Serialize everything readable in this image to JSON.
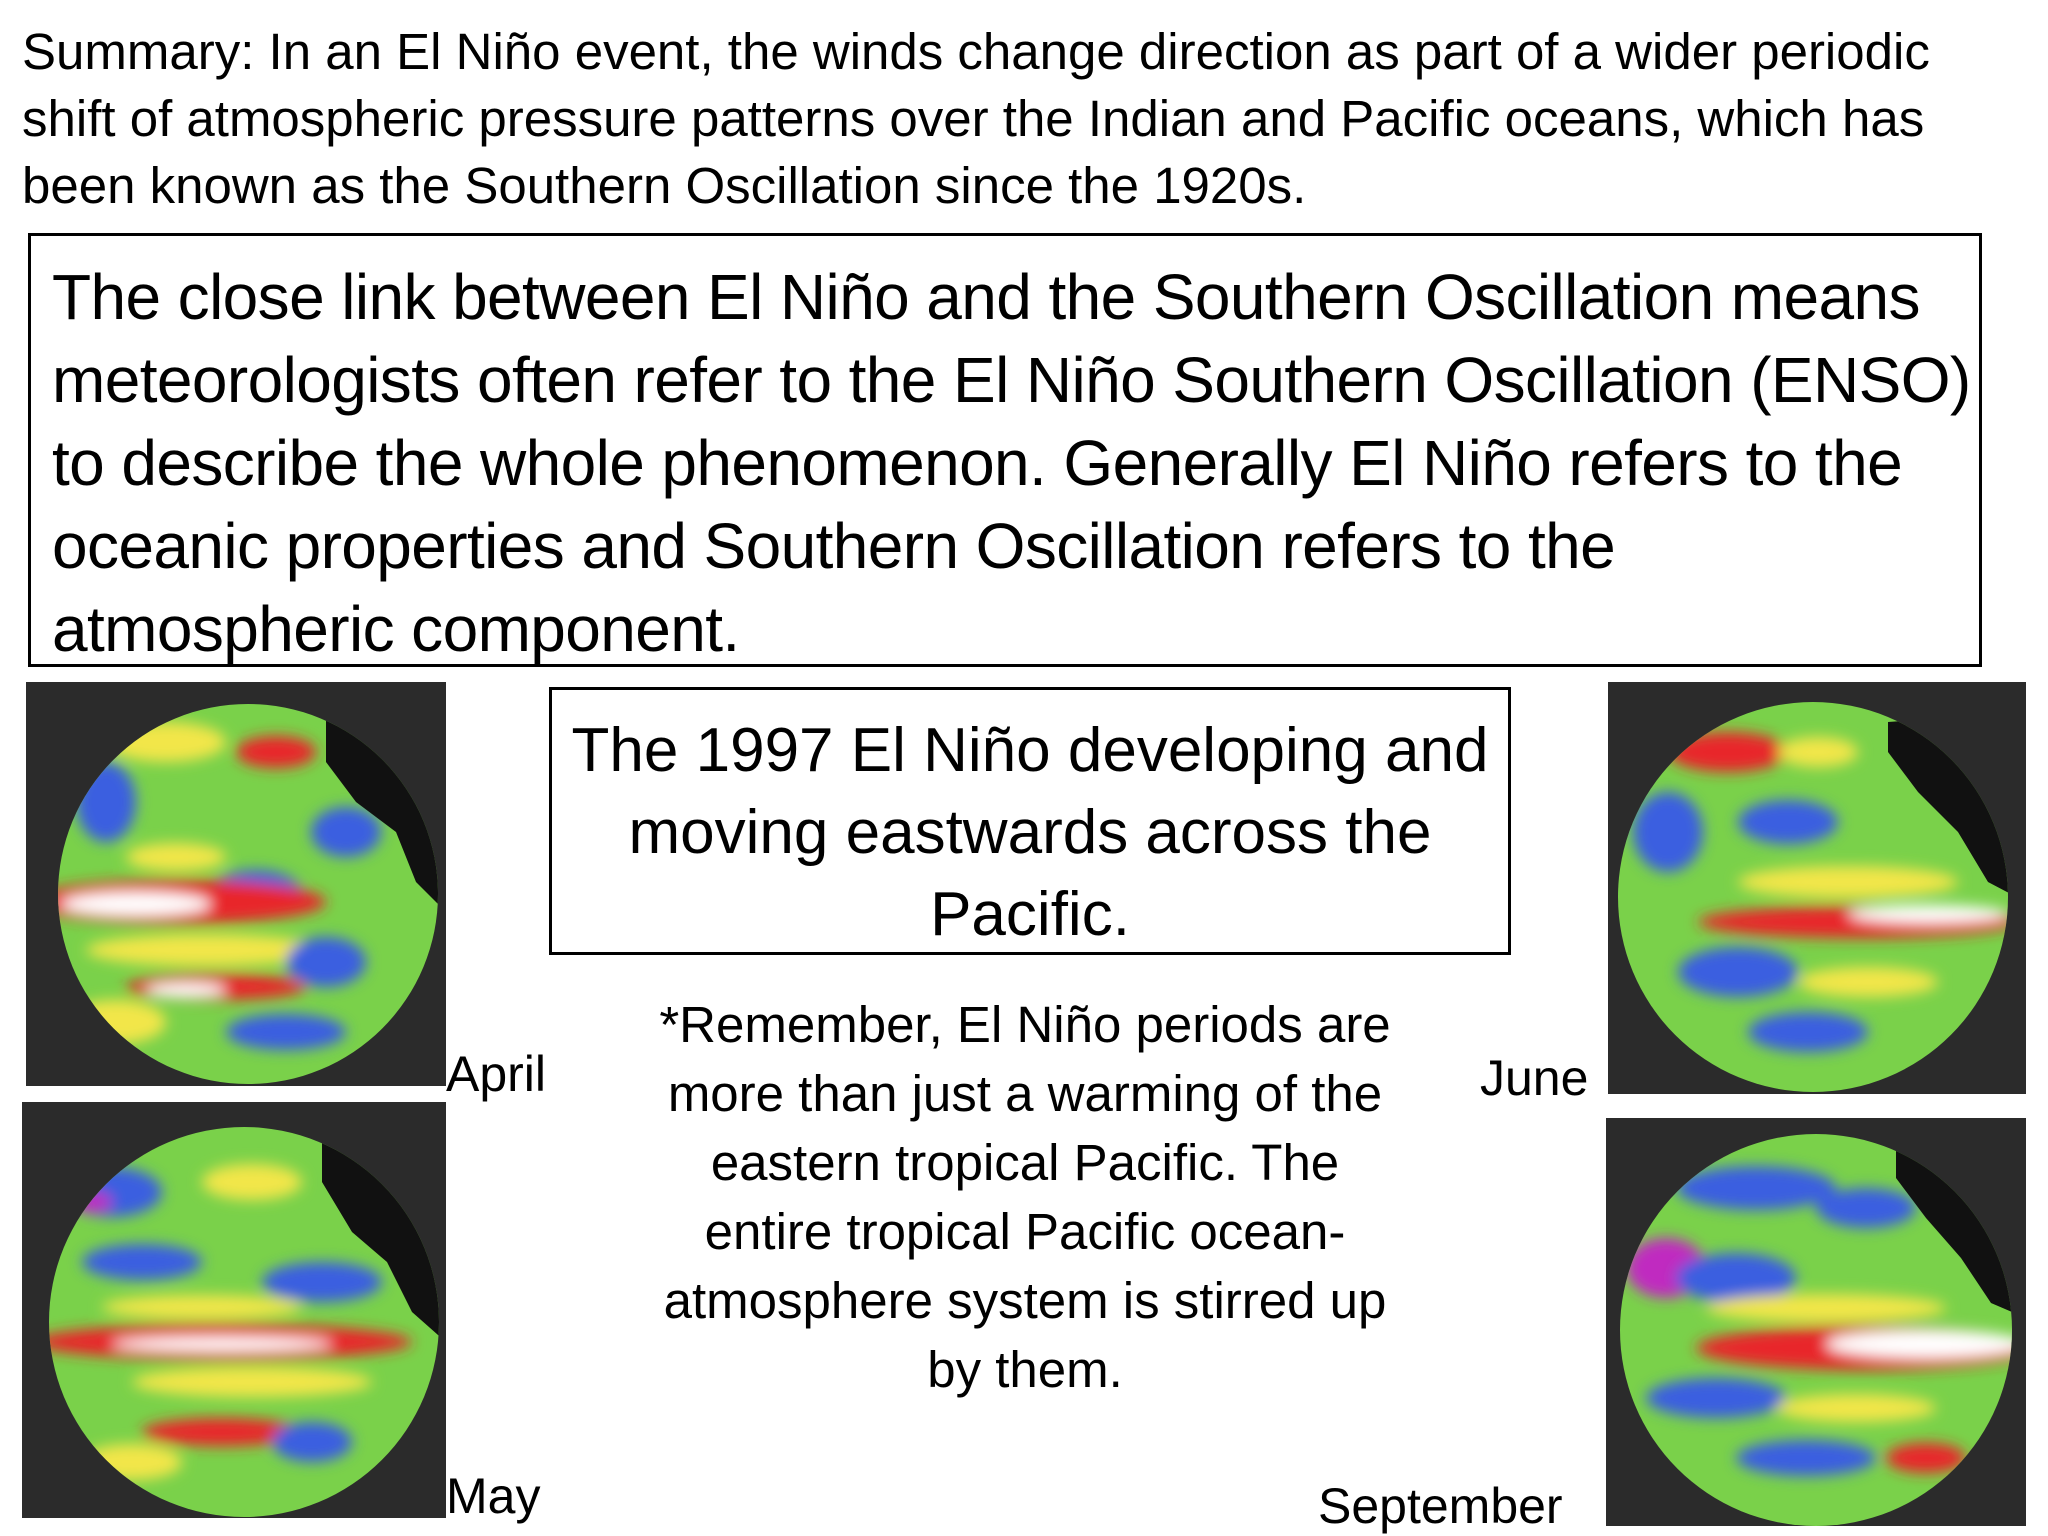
{
  "summary": "Summary: In an El Niño event, the winds change direction as part of a wider periodic shift of atmospheric pressure patterns over the Indian and Pacific oceans, which has been known as the Southern Oscillation since the 1920s.",
  "main_text": "The close link between El Niño and the Southern Oscillation means meteorologists often refer to the El Niño Southern Oscillation (ENSO) to describe the whole phenomenon. Generally El Niño refers to the oceanic properties and Southern Oscillation refers to the atmospheric component.",
  "caption": "The 1997 El Niño developing and moving eastwards across the Pacific.",
  "note": "*Remember, El Niño periods are more than just a warming of the eastern tropical Pacific. The entire tropical Pacific ocean-atmosphere system is stirred up by them.",
  "maps": {
    "april": "April",
    "may": "May",
    "june": "June",
    "september": "September"
  },
  "colors": {
    "background": "#2b2b2b",
    "ocean": "#7ad14a",
    "land": "#111111",
    "warm": "#e8262a",
    "hot": "#ffffff",
    "cool": "#3a5fe0",
    "cold": "#c02cc0",
    "mild": "#f2e64a"
  }
}
